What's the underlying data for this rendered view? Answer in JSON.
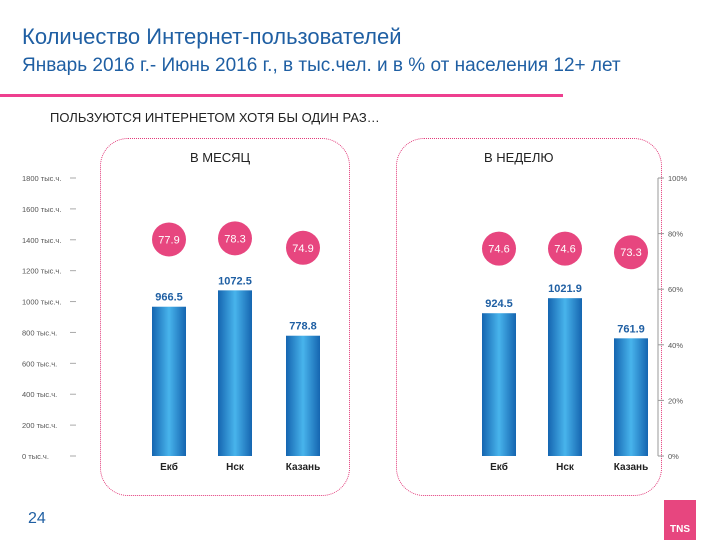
{
  "header": {
    "title": "Количество Интернет-пользователей",
    "subtitle": "Январь 2016 г.- Июнь 2016 г., в тыс.чел. и в % от населения 12+ лет"
  },
  "section_heading": "ПОЛЬЗУЮТСЯ ИНТЕРНЕТОМ ХОТЯ БЫ ОДИН РАЗ…",
  "page_number": "24",
  "logo_text": "TNS",
  "colors": {
    "bar": "#2a8fd3",
    "bubble": "#e7467f",
    "value": "#1f5fa3",
    "border": "#e23a7a"
  },
  "chart_data": {
    "type": "bar",
    "left_axis": {
      "ticks": [
        "0 тыс.ч.",
        "200 тыс.ч.",
        "400 тыс.ч.",
        "600 тыс.ч.",
        "800 тыс.ч.",
        "1000 тыс.ч.",
        "1200 тыс.ч.",
        "1400 тыс.ч.",
        "1600 тыс.ч.",
        "1800 тыс.ч."
      ],
      "ylim": [
        0,
        1800
      ]
    },
    "right_axis": {
      "ticks": [
        "0%",
        "20%",
        "40%",
        "60%",
        "80%",
        "100%"
      ],
      "ylim": [
        0,
        100
      ]
    },
    "groups": [
      {
        "label": "В МЕСЯЦ",
        "categories": [
          "Екб",
          "Нск",
          "Казань"
        ],
        "values": [
          966.5,
          1072.5,
          778.8
        ],
        "value_labels": [
          "966.5",
          "1072.5",
          "778.8"
        ],
        "percents": [
          77.9,
          78.3,
          74.9
        ],
        "percent_labels": [
          "77.9",
          "78.3",
          "74.9"
        ]
      },
      {
        "label": "В НЕДЕЛЮ",
        "categories": [
          "Екб",
          "Нск",
          "Казань"
        ],
        "values": [
          924.5,
          1021.9,
          761.9
        ],
        "value_labels": [
          "924.5",
          "1021.9",
          "761.9"
        ],
        "percents": [
          74.6,
          74.6,
          73.3
        ],
        "percent_labels": [
          "74.6",
          "74.6",
          "73.3"
        ]
      }
    ]
  }
}
